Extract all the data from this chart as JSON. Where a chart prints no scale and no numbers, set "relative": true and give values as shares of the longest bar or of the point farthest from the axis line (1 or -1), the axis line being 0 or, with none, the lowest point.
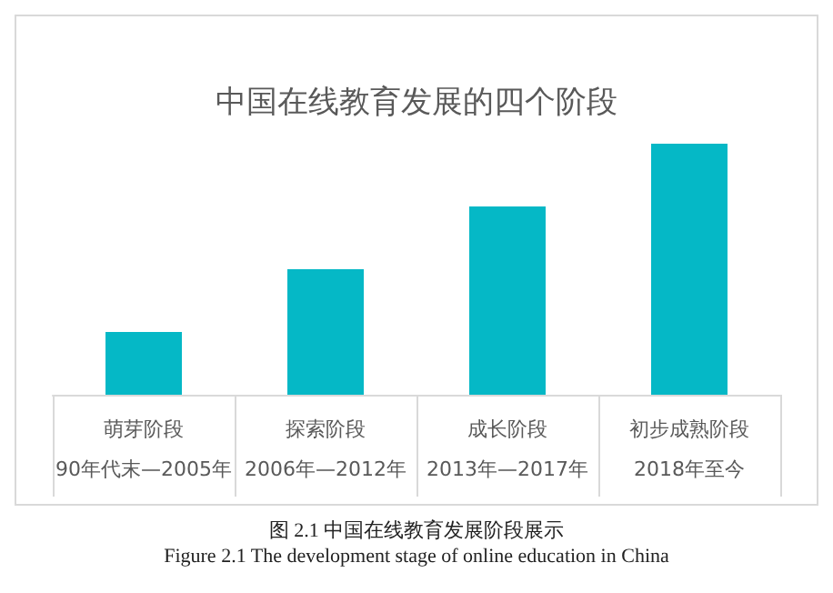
{
  "chart_data": {
    "type": "bar",
    "title": "中国在线教育发展的四个阶段",
    "categories": [
      "萌芽阶段\n90年代末—2005年",
      "探索阶段\n2006年—2012年",
      "成长阶段\n2013年—2017年",
      "初步成熟阶段\n2018年至今"
    ],
    "values": [
      0.25,
      0.5,
      0.75,
      1
    ],
    "color": "#05b8c6",
    "relative": true,
    "grid": false,
    "annotations": [
      "图 2.1  中国在线教育发展阶段展示",
      "Figure 2.1 The development stage of online education in China"
    ]
  }
}
